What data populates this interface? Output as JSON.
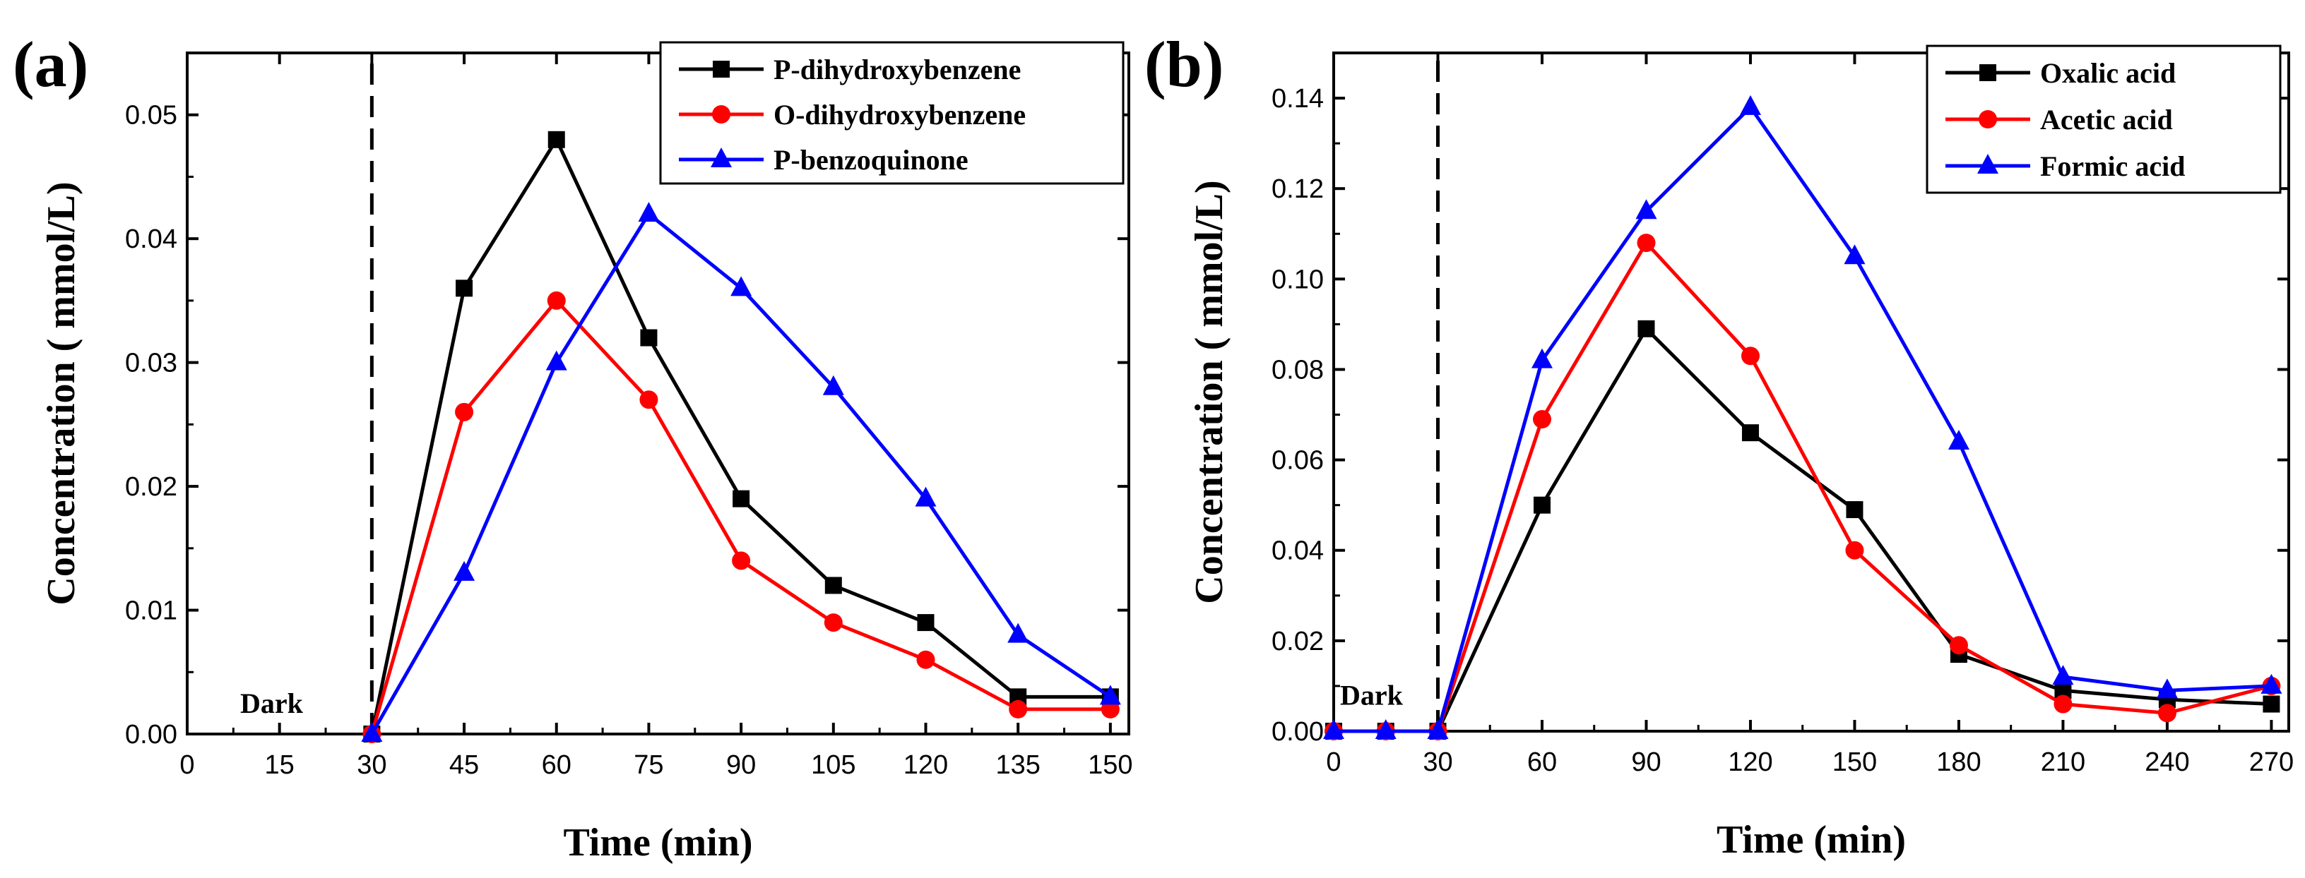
{
  "chart_data": [
    {
      "type": "line",
      "panel_label": "(a)",
      "xlabel": "Time (min)",
      "ylabel": "Concentration ( mmol/L)",
      "xlim": [
        0,
        153
      ],
      "ylim": [
        0,
        0.055
      ],
      "xticks": [
        0,
        15,
        30,
        45,
        60,
        75,
        90,
        105,
        120,
        135,
        150
      ],
      "yticks": [
        0.0,
        0.01,
        0.02,
        0.03,
        0.04,
        0.05
      ],
      "ytick_labels": [
        "0.00",
        "0.01",
        "0.02",
        "0.03",
        "0.04",
        "0.05"
      ],
      "dark_line_x": 30,
      "dark_label": "Dark",
      "dark_label_y": 0.0025,
      "legend_position": "top-right",
      "series": [
        {
          "name": "P-dihydroxybenzene",
          "color": "#000000",
          "marker": "square",
          "x": [
            30,
            45,
            60,
            75,
            90,
            105,
            120,
            135,
            150
          ],
          "values": [
            0,
            0.036,
            0.048,
            0.032,
            0.019,
            0.012,
            0.009,
            0.003,
            0.003
          ]
        },
        {
          "name": "O-dihydroxybenzene",
          "color": "#ff0000",
          "marker": "circle",
          "x": [
            30,
            45,
            60,
            75,
            90,
            105,
            120,
            135,
            150
          ],
          "values": [
            0,
            0.026,
            0.035,
            0.027,
            0.014,
            0.009,
            0.006,
            0.002,
            0.002
          ]
        },
        {
          "name": "P-benzoquinone",
          "color": "#0000ff",
          "marker": "triangle",
          "x": [
            30,
            45,
            60,
            75,
            90,
            105,
            120,
            135,
            150
          ],
          "values": [
            0,
            0.013,
            0.03,
            0.042,
            0.036,
            0.028,
            0.019,
            0.008,
            0.003
          ]
        }
      ]
    },
    {
      "type": "line",
      "panel_label": "(b)",
      "xlabel": "Time (min)",
      "ylabel": "Concentration ( mmol/L)",
      "xlim": [
        0,
        275
      ],
      "ylim": [
        0,
        0.15
      ],
      "xticks": [
        0,
        30,
        60,
        90,
        120,
        150,
        180,
        210,
        240,
        270
      ],
      "yticks": [
        0.0,
        0.02,
        0.04,
        0.06,
        0.08,
        0.1,
        0.12,
        0.14
      ],
      "ytick_labels": [
        "0.00",
        "0.02",
        "0.04",
        "0.06",
        "0.08",
        "0.10",
        "0.12",
        "0.14"
      ],
      "dark_line_x": 30,
      "dark_label": "Dark",
      "dark_label_y": 0.008,
      "legend_position": "top-right",
      "series": [
        {
          "name": "Oxalic acid",
          "color": "#000000",
          "marker": "square",
          "x": [
            0,
            15,
            30,
            60,
            90,
            120,
            150,
            180,
            210,
            240,
            270
          ],
          "values": [
            0,
            0,
            0,
            0.05,
            0.089,
            0.066,
            0.049,
            0.017,
            0.009,
            0.007,
            0.006
          ]
        },
        {
          "name": "Acetic acid",
          "color": "#ff0000",
          "marker": "circle",
          "x": [
            0,
            15,
            30,
            60,
            90,
            120,
            150,
            180,
            210,
            240,
            270
          ],
          "values": [
            0,
            0,
            0,
            0.069,
            0.108,
            0.083,
            0.04,
            0.019,
            0.006,
            0.004,
            0.01
          ]
        },
        {
          "name": "Formic acid",
          "color": "#0000ff",
          "marker": "triangle",
          "x": [
            0,
            15,
            30,
            60,
            90,
            120,
            150,
            180,
            210,
            240,
            270
          ],
          "values": [
            0,
            0,
            0,
            0.082,
            0.115,
            0.138,
            0.105,
            0.064,
            0.012,
            0.009,
            0.01
          ]
        }
      ]
    }
  ]
}
